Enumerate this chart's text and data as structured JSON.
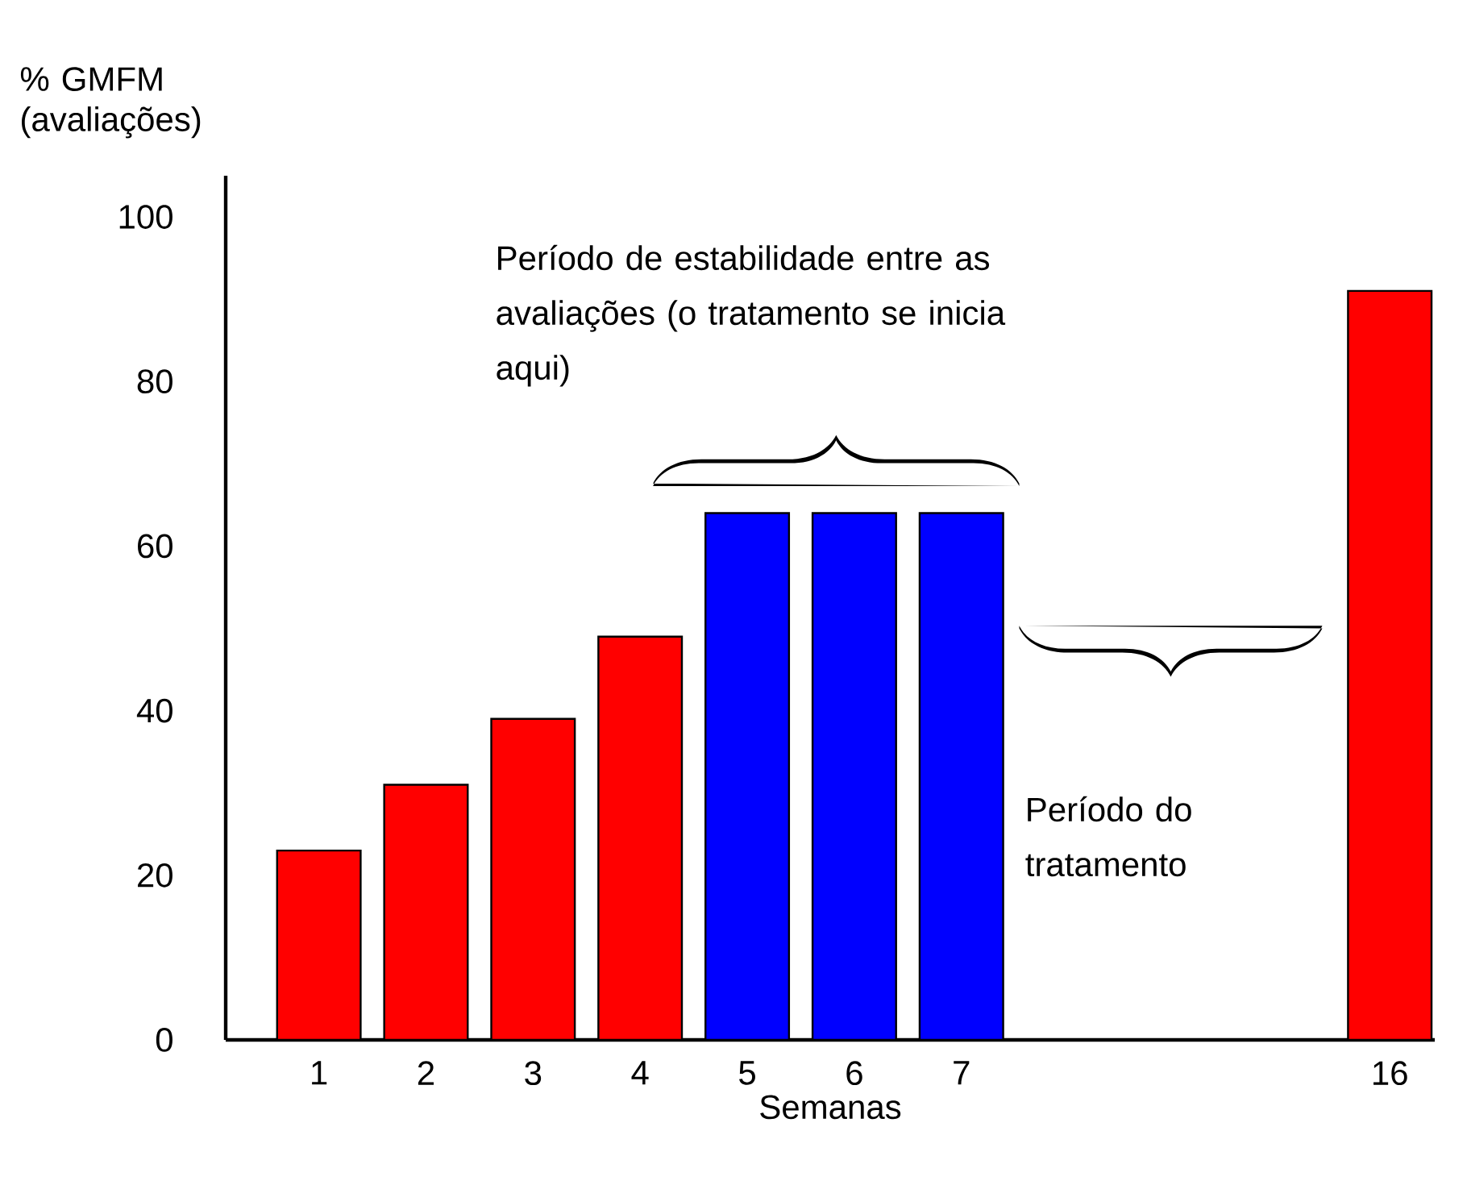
{
  "chart_data": {
    "type": "bar",
    "ylabel": "% GMFM (avaliações)",
    "xlabel": "Semanas",
    "categories": [
      "1",
      "2",
      "3",
      "4",
      "5",
      "6",
      "7",
      null,
      null,
      null,
      "16"
    ],
    "values": [
      23,
      31,
      39,
      49,
      64,
      64,
      64,
      null,
      null,
      null,
      91
    ],
    "colors": [
      "#ff0000",
      "#ff0000",
      "#ff0000",
      "#ff0000",
      "#0000ff",
      "#0000ff",
      "#0000ff",
      "#ff0000",
      "#ff0000",
      "#ff0000",
      "#ff0000"
    ],
    "ylim": [
      0,
      105
    ],
    "yticks": [
      0,
      20,
      40,
      60,
      80,
      100
    ],
    "annotations": [
      "Período de estabilidade entre as avaliações (o tratamento se inicia aqui)",
      "Período do tratamento"
    ],
    "grid": false
  }
}
